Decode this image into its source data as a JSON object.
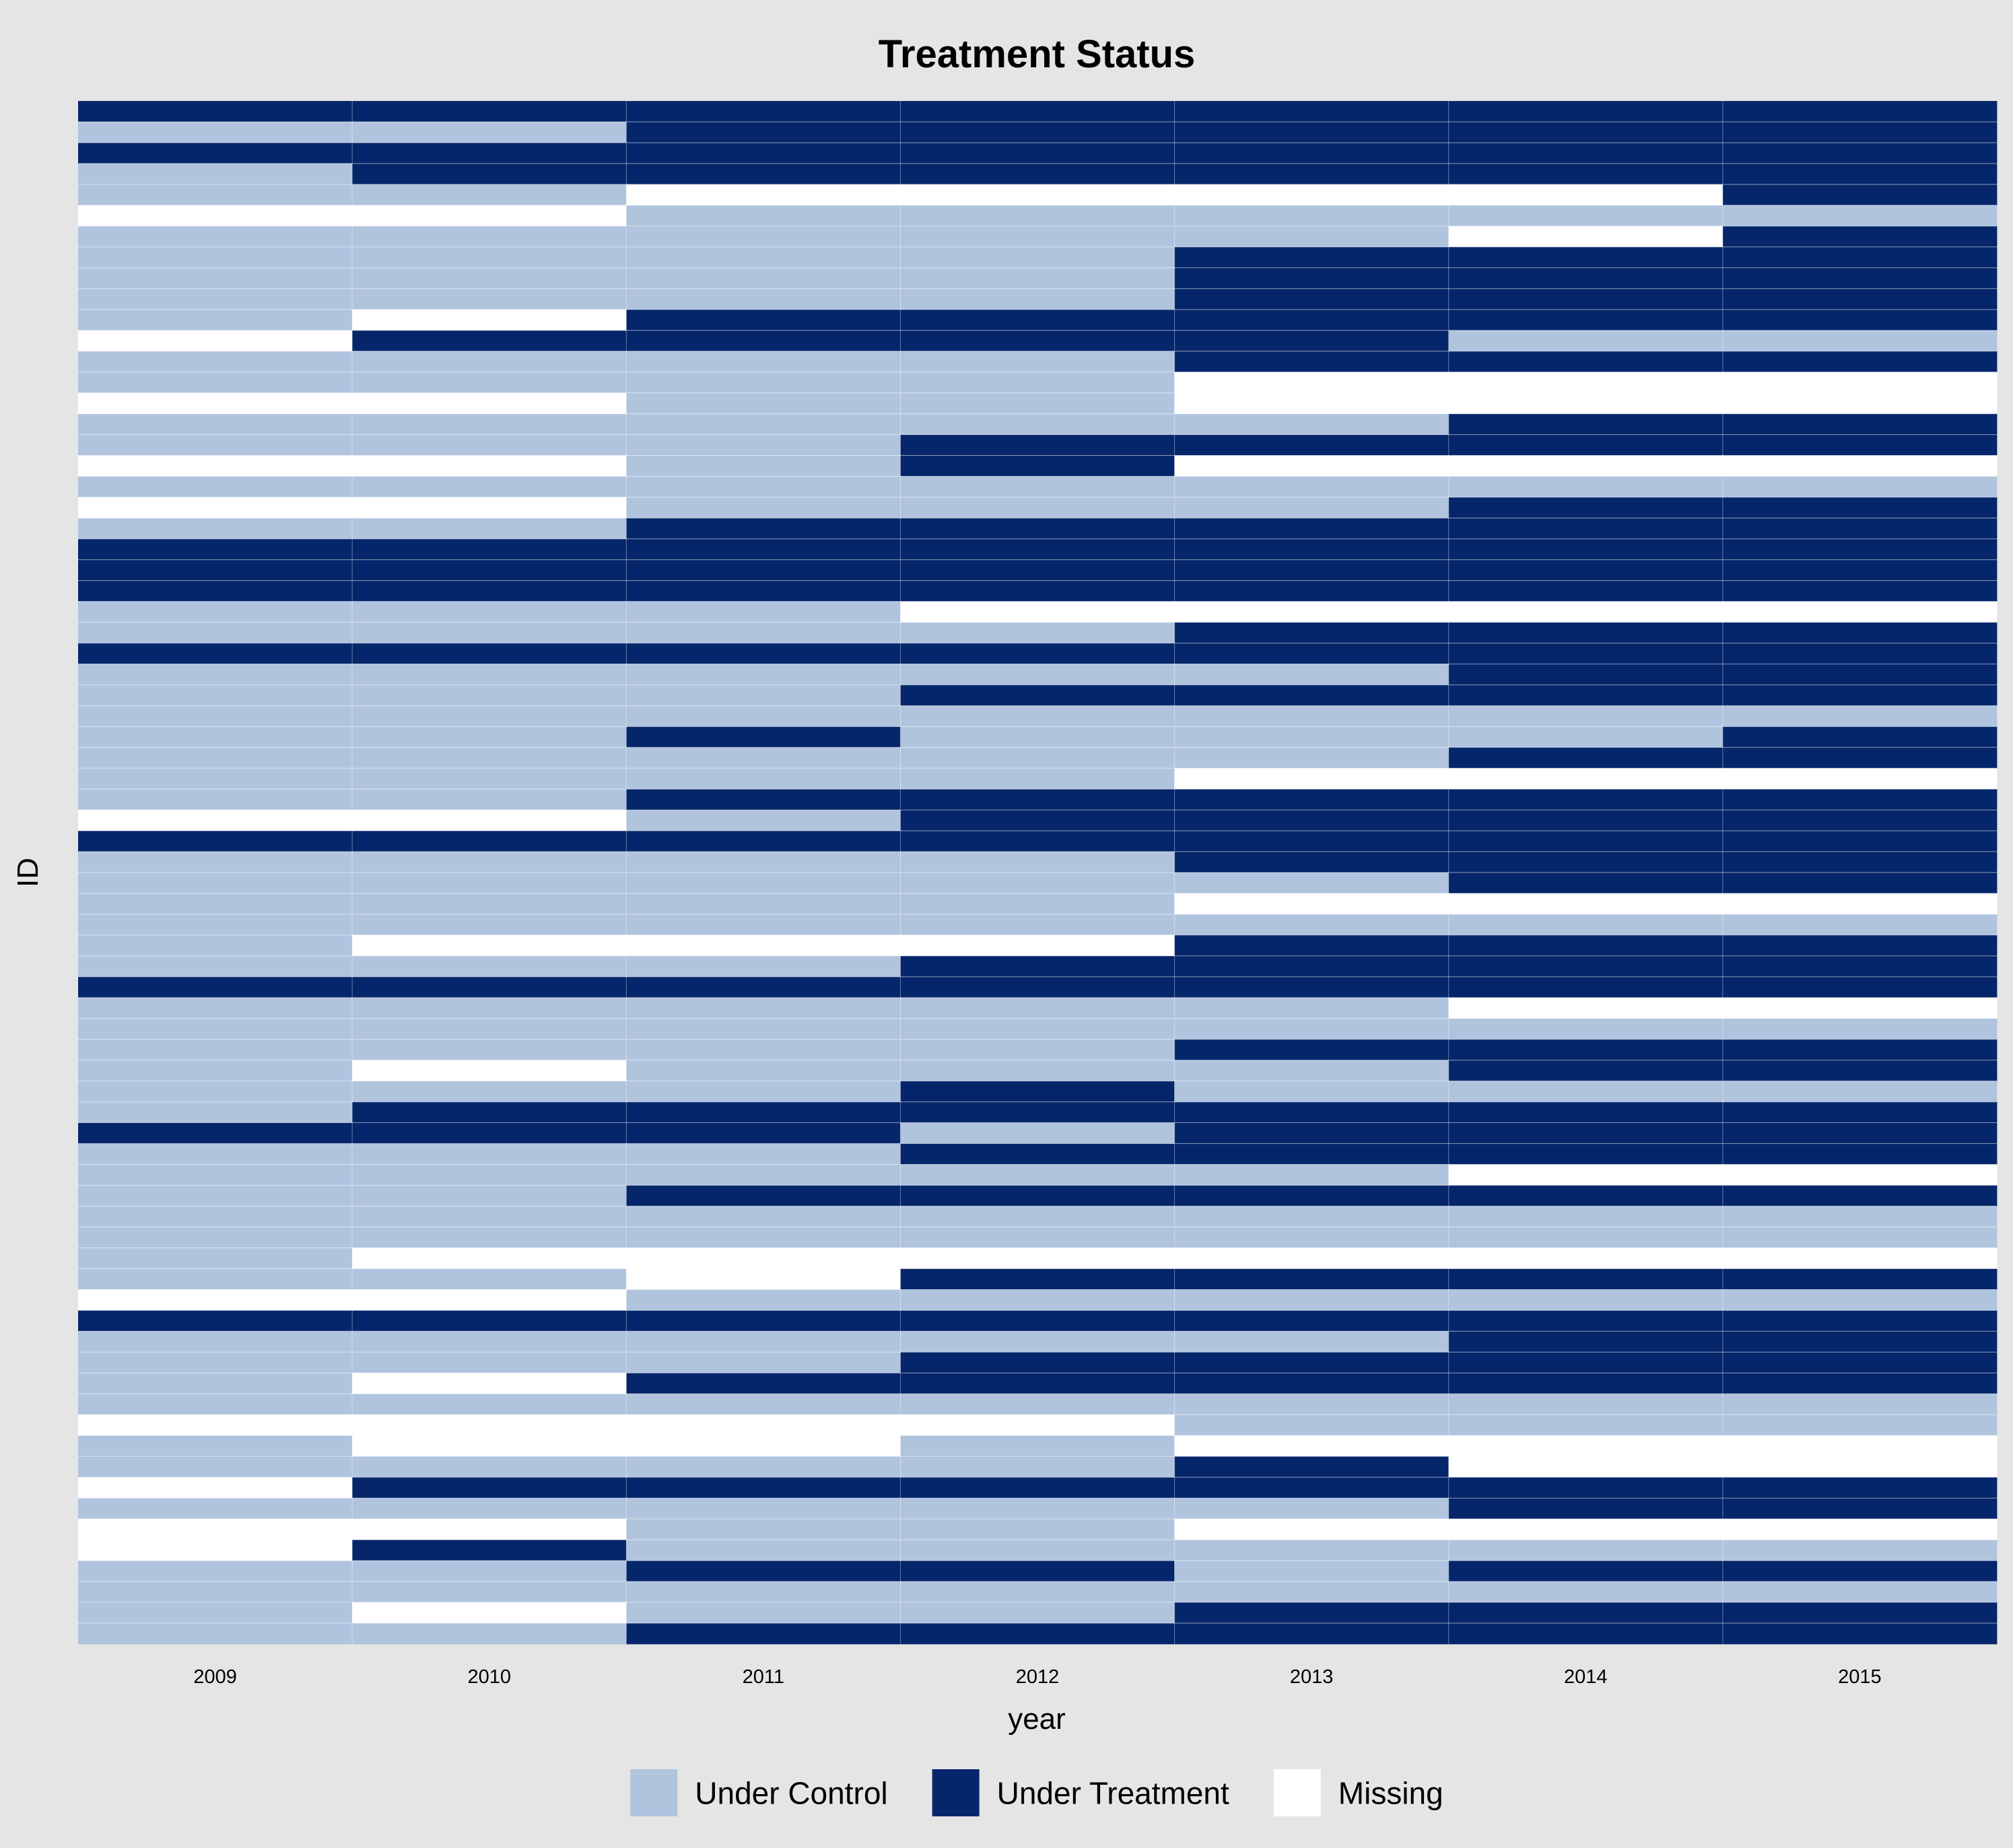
{
  "chart_data": {
    "type": "heatmap",
    "title": "Treatment Status",
    "xlabel": "year",
    "ylabel": "ID",
    "x": [
      "2009",
      "2010",
      "2011",
      "2012",
      "2013",
      "2014",
      "2015"
    ],
    "status_codes": {
      "C": "Under Control",
      "T": "Under Treatment",
      "M": "Missing"
    },
    "legend": {
      "position": "bottom",
      "items": [
        {
          "key": "C",
          "label": "Under Control",
          "color": "#b0c4de"
        },
        {
          "key": "T",
          "label": "Under Treatment",
          "color": "#05266b"
        },
        {
          "key": "M",
          "label": "Missing",
          "color": "#ffffff"
        }
      ]
    },
    "grid": true,
    "rows": [
      "TTTTTTT",
      "CCTTTTT",
      "TTTTTTT",
      "CTTTTTT",
      "CCMMMMT",
      "MMCCCCC",
      "CCCCCMT",
      "CCCCTTT",
      "CCCCTTT",
      "CCCCTTT",
      "CMTTTTT",
      "MTTTTCC",
      "CCCCTTT",
      "CCCCMMM",
      "MMCCMMM",
      "CCCCCTT",
      "CCCTTTT",
      "MMCTMMM",
      "CCCCCCC",
      "MMCCCTT",
      "CCTTTTT",
      "TTTTTTT",
      "TTTTTTT",
      "TTTTTTT",
      "CCCMMMM",
      "CCCCTTT",
      "TTTTTTT",
      "CCCCCTT",
      "CCCTTTT",
      "CCCCCCC",
      "CCTCCCT",
      "CCCCCTT",
      "CCCCMMM",
      "CCTTTTT",
      "MMCTTTT",
      "TTTTTTT",
      "CCCCTTT",
      "CCCCCTT",
      "CCCCMMM",
      "CCCCCCC",
      "CMMMTTT",
      "CCCTTTT",
      "TTTTTTT",
      "CCCCCMM",
      "CCCCCCC",
      "CCCCTTT",
      "CMCCCTT",
      "CCCTCCC",
      "CTTTTTT",
      "TTTCTTT",
      "CCCTTTT",
      "CCCCCMM",
      "CCTTTTT",
      "CCCCCCC",
      "CCCCCCC",
      "CMMMMMM",
      "CCMTTTT",
      "MMCCCCC",
      "TTTTTTT",
      "CCCCCTT",
      "CCCTTTT",
      "CMTTTTT",
      "CCCCCCC",
      "MMMMCCC",
      "CMMCMMM",
      "CCCCTMM",
      "MTTTTTT",
      "CCCCCTT",
      "MMCCMMM",
      "MTCCCCC",
      "CCTTCTT",
      "CCCCCCC",
      "CMCCTTT",
      "CCTTTTT"
    ]
  }
}
